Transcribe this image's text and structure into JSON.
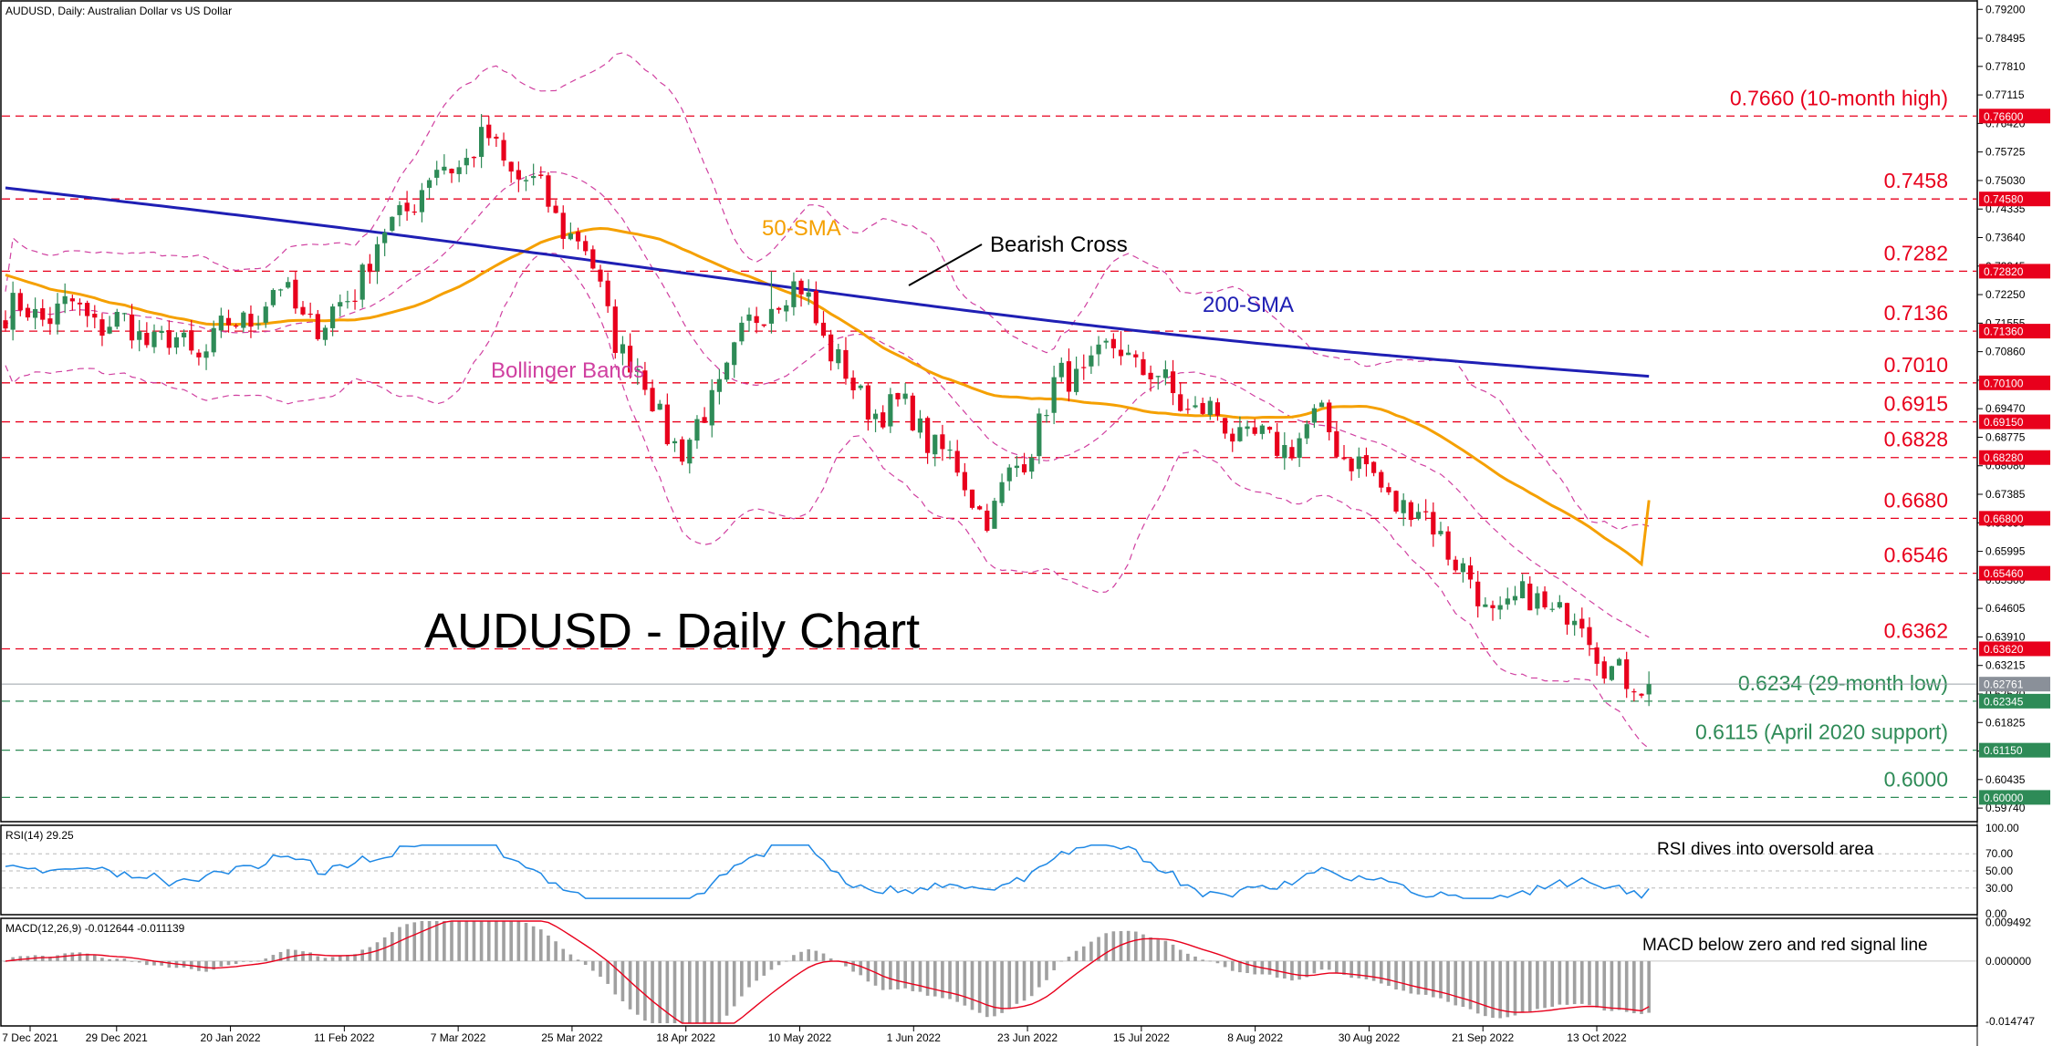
{
  "header": {
    "chart_title": "AUDUSD, Daily:  Australian Dollar vs US Dollar",
    "rsi_label": "RSI(14) 29.25",
    "macd_label": "MACD(12,26,9) -0.012644 -0.011139"
  },
  "overlay": {
    "big_title": "AUDUSD - Daily Chart",
    "sma50": "50-SMA",
    "sma200": "200-SMA",
    "bollinger": "Bollinger Bands",
    "bearish_cross": "Bearish Cross",
    "rsi_note": "RSI dives into oversold area",
    "macd_note": "MACD below zero and red signal line"
  },
  "colors": {
    "bull": "#2e8b57",
    "bear": "#e8001c",
    "sma50": "#f5a000",
    "sma200": "#1f1fb4",
    "bollinger": "#d040a0",
    "resistance": "#e8001c",
    "support": "#2e8b57",
    "rsi": "#1e88e5",
    "macd_signal": "#e8001c",
    "macd_hist": "#a0a0a0",
    "price_tag": "#8a9099"
  },
  "chart_data": [
    {
      "type": "candlestick",
      "title": "AUDUSD, Daily:  Australian Dollar vs US Dollar",
      "x_tick_labels": [
        "7 Dec 2021",
        "29 Dec 2021",
        "20 Jan 2022",
        "11 Feb 2022",
        "7 Mar 2022",
        "25 Mar 2022",
        "18 Apr 2022",
        "10 May 2022",
        "1 Jun 2022",
        "23 Jun 2022",
        "15 Jul 2022",
        "8 Aug 2022",
        "30 Aug 2022",
        "21 Sep 2022",
        "13 Oct 2022"
      ],
      "y_tick_labels": [
        "0.79200",
        "0.78495",
        "0.77810",
        "0.77115",
        "0.76420",
        "0.75725",
        "0.75030",
        "0.74335",
        "0.73640",
        "0.72945",
        "0.72250",
        "0.71555",
        "0.70860",
        "0.70165",
        "0.69470",
        "0.68775",
        "0.68080",
        "0.67385",
        "0.66690",
        "0.65995",
        "0.65300",
        "0.64605",
        "0.63910",
        "0.63215",
        "0.62520",
        "0.61825",
        "0.61130",
        "0.60435",
        "0.59740"
      ],
      "ylim": [
        0.5952,
        0.7925
      ],
      "levels": [
        {
          "value": 0.766,
          "label": "0.7660 (10-month high)",
          "tag": "0.76600",
          "kind": "resistance"
        },
        {
          "value": 0.7458,
          "label": "0.7458",
          "tag": "0.74580",
          "kind": "resistance"
        },
        {
          "value": 0.7282,
          "label": "0.7282",
          "tag": "0.72820",
          "kind": "resistance"
        },
        {
          "value": 0.7136,
          "label": "0.7136",
          "tag": "0.71360",
          "kind": "resistance"
        },
        {
          "value": 0.701,
          "label": "0.7010",
          "tag": "0.70100",
          "kind": "resistance"
        },
        {
          "value": 0.6915,
          "label": "0.6915",
          "tag": "0.69150",
          "kind": "resistance"
        },
        {
          "value": 0.6828,
          "label": "0.6828",
          "tag": "0.68280",
          "kind": "resistance"
        },
        {
          "value": 0.668,
          "label": "0.6680",
          "tag": "0.66800",
          "kind": "resistance"
        },
        {
          "value": 0.6546,
          "label": "0.6546",
          "tag": "0.65460",
          "kind": "resistance"
        },
        {
          "value": 0.6362,
          "label": "0.6362",
          "tag": "0.63620",
          "kind": "resistance"
        },
        {
          "value": 0.62345,
          "label": "0.6234 (29-month low)",
          "tag": "0.62345",
          "kind": "support"
        },
        {
          "value": 0.6115,
          "label": "0.6115 (April 2020 support)",
          "tag": "0.61150",
          "kind": "support"
        },
        {
          "value": 0.6,
          "label": "0.6000",
          "tag": "0.60000",
          "kind": "support"
        }
      ],
      "current_price": {
        "value": 0.6276,
        "tag": "0.62761"
      },
      "series": [
        {
          "name": "Price",
          "kind": "candles"
        },
        {
          "name": "50-SMA",
          "kind": "line"
        },
        {
          "name": "200-SMA",
          "kind": "line"
        },
        {
          "name": "Bollinger Bands",
          "kind": "band"
        }
      ],
      "key_points": {
        "start": 0.718,
        "dec_low": 0.705,
        "feb_peak": 0.7235,
        "mar_low": 0.713,
        "apr_high": 0.766,
        "may_low": 0.6829,
        "jun_high": 0.7282,
        "jul_low": 0.6681,
        "aug_high": 0.7136,
        "sep_low": 0.6362,
        "oct_low": 0.6234,
        "last": 0.6276,
        "sma50_start": 0.7273,
        "sma50_end": 0.6724,
        "sma200_start": 0.7485,
        "sma200_end": 0.7026
      }
    },
    {
      "type": "line",
      "title": "RSI(14) 29.25",
      "y_tick_labels": [
        "100.00",
        "70.00",
        "50.00",
        "30.00",
        "0.00"
      ],
      "ylim": [
        0,
        100
      ],
      "levels": [
        70,
        50,
        30
      ],
      "last": 29.25
    },
    {
      "type": "bar",
      "title": "MACD(12,26,9) -0.012644 -0.011139",
      "y_tick_labels": [
        "0.009492",
        "0.000000",
        "-0.014747"
      ],
      "ylim": [
        -0.0152,
        0.0098
      ],
      "macd_last": -0.012644,
      "signal_last": -0.011139
    }
  ]
}
